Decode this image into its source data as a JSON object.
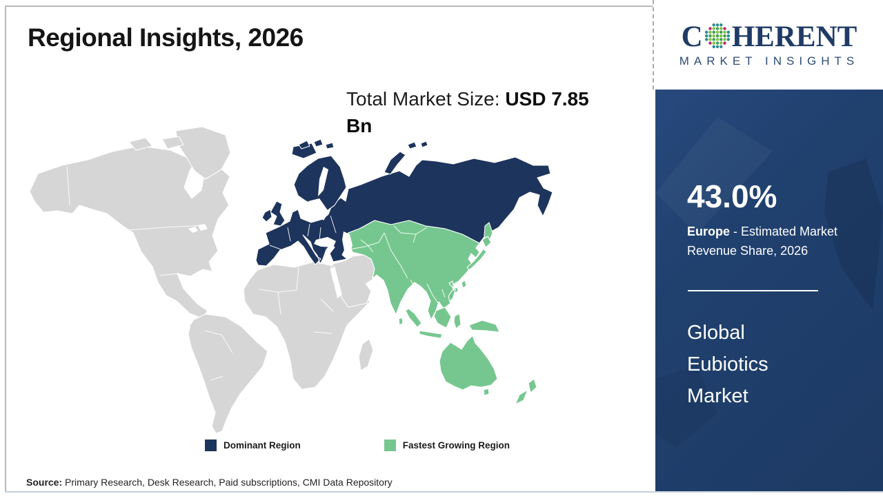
{
  "title": "Regional Insights, 2026",
  "market_size": {
    "label": "Total Market Size: ",
    "value_line1": "USD 7.85",
    "value_line2": "Bn"
  },
  "logo": {
    "part1": "C",
    "part2": "HERENT",
    "subtitle": "MARKET INSIGHTS"
  },
  "sidebar": {
    "share_value": "43.0%",
    "share_region": "Europe",
    "share_desc": " - Estimated Market Revenue Share, 2026",
    "market_name": "Global Eubiotics Market"
  },
  "legend": [
    {
      "label": "Dominant Region",
      "color": "#1d345c"
    },
    {
      "label": "Fastest Growing Region",
      "color": "#76c78f"
    }
  ],
  "source": {
    "label": "Source:",
    "text": " Primary Research, Desk Research, Paid subscriptions, CMI Data Repository"
  },
  "colors": {
    "dominant": "#1d345c",
    "growing": "#76c78f",
    "land": "#d6d6d6",
    "sidebar_bg": "#20406e",
    "logo_navy": "#1f3b66",
    "logo_teal": "#2e8b8f",
    "logo_green": "#7ac143",
    "logo_green_dark": "#3f9e4d",
    "logo_pink": "#c2226e",
    "frame": "#b9b9b9"
  },
  "chart_data": {
    "type": "heatmap",
    "subtype": "choropleth-world-map",
    "title": "Regional Insights, 2026",
    "total_market_size": "USD 7.85 Bn",
    "highlight_stat": {
      "value": "43.0%",
      "region": "Europe",
      "metric": "Estimated Market Revenue Share, 2026"
    },
    "market": "Global Eubiotics Market",
    "legend_position": "bottom",
    "regions": [
      {
        "name": "Europe (incl. Russia)",
        "category": "Dominant Region",
        "color": "#1d345c",
        "value": "43.0% revenue share, 2026"
      },
      {
        "name": "Asia Pacific (Central Asia, China, India, Southeast Asia, Japan, Korea, Indonesia, Australia, New Zealand)",
        "category": "Fastest Growing Region",
        "color": "#76c78f"
      },
      {
        "name": "Americas, Africa, Middle East (rest of world)",
        "category": "Not highlighted",
        "color": "#d6d6d6"
      }
    ],
    "legend": [
      "Dominant Region",
      "Fastest Growing Region"
    ],
    "source": "Primary Research, Desk Research, Paid subscriptions, CMI Data Repository"
  }
}
